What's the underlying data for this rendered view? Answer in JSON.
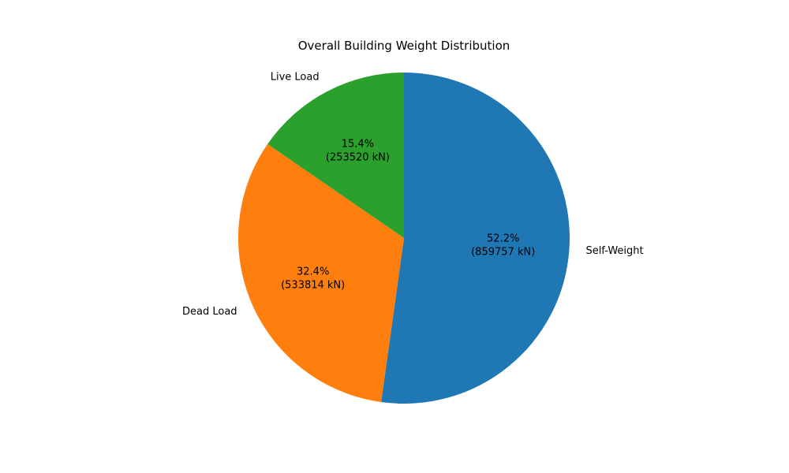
{
  "chart_data": {
    "type": "pie",
    "title": "Overall Building Weight Distribution",
    "start_angle_deg": 90,
    "direction": "clockwise",
    "slices": [
      {
        "label": "Self-Weight",
        "value": 859757,
        "percent_text": "52.2%",
        "value_text": "(859757 kN)",
        "color": "#1f77b4"
      },
      {
        "label": "Dead Load",
        "value": 533814,
        "percent_text": "32.4%",
        "value_text": "(533814 kN)",
        "color": "#ff7f0e"
      },
      {
        "label": "Live Load",
        "value": 253520,
        "percent_text": "15.4%",
        "value_text": "(253520 kN)",
        "color": "#2ca02c"
      }
    ]
  }
}
